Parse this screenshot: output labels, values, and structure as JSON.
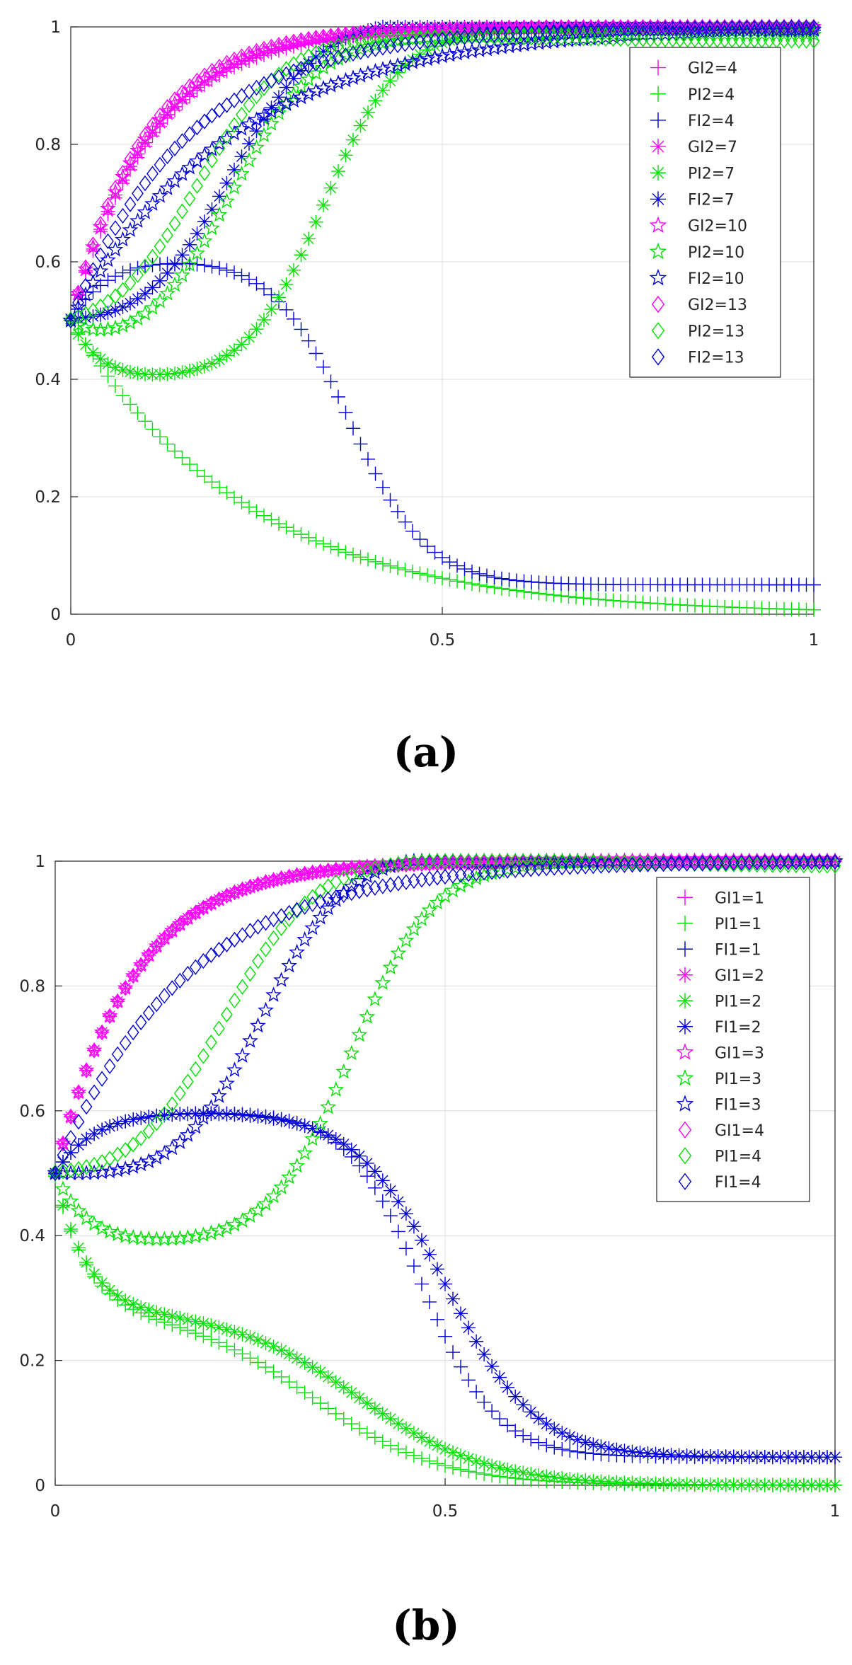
{
  "figure": {
    "caption_a": "(a)",
    "caption_b": "(b)"
  },
  "colors": {
    "G": "#ff00ff",
    "P": "#00e000",
    "F": "#0000d4"
  },
  "chart_data": [
    {
      "type": "scatter",
      "panel": "a",
      "title": "",
      "xlabel": "",
      "ylabel": "",
      "xlim": [
        0,
        1
      ],
      "ylim": [
        0,
        1
      ],
      "xticks": [
        "0",
        "0.5",
        "1"
      ],
      "yticks": [
        "0",
        "0.2",
        "0.4",
        "0.6",
        "0.8",
        "1"
      ],
      "grid": true,
      "legend_position": "top-right",
      "series": [
        {
          "name": "GI2=4",
          "group": "G",
          "marker": "plus",
          "model": "rise",
          "params": {
            "k": 9.0
          }
        },
        {
          "name": "PI2=4",
          "group": "P",
          "marker": "plus",
          "model": "fall",
          "params": {
            "k": 4.2
          }
        },
        {
          "name": "FI2=4",
          "group": "F",
          "marker": "plus",
          "model": "bump",
          "params": {
            "p": 0.11,
            "q": 0.06,
            "c": 0.375,
            "s": 0.052
          }
        },
        {
          "name": "GI2=7",
          "group": "G",
          "marker": "asterisk",
          "model": "rise",
          "params": {
            "k": 9.3
          }
        },
        {
          "name": "PI2=7",
          "group": "P",
          "marker": "asterisk",
          "model": "dip",
          "params": {
            "d": 0.105,
            "w": 0.09,
            "c": 0.34,
            "s": 0.052
          }
        },
        {
          "name": "FI2=7",
          "group": "F",
          "marker": "asterisk",
          "model": "rise",
          "params": {
            "k": 2.3,
            "b": 0.095,
            "c": 0.215,
            "s": 0.062
          }
        },
        {
          "name": "GI2=10",
          "group": "G",
          "marker": "star",
          "model": "rise",
          "params": {
            "k": 9.6
          }
        },
        {
          "name": "PI2=10",
          "group": "P",
          "marker": "star",
          "model": "dip",
          "params": {
            "d": 0.045,
            "w": 0.06,
            "c": 0.215,
            "s": 0.058
          }
        },
        {
          "name": "FI2=10",
          "group": "F",
          "marker": "star",
          "model": "rise",
          "params": {
            "k": 4.6
          }
        },
        {
          "name": "GI2=13",
          "group": "G",
          "marker": "diamond",
          "model": "rise",
          "params": {
            "k": 10.0
          }
        },
        {
          "name": "PI2=13",
          "group": "P",
          "marker": "diamond",
          "model": "rise",
          "params": {
            "k": 2.3,
            "b": 0.04,
            "c": 0.17,
            "s": 0.06
          }
        },
        {
          "name": "FI2=13",
          "group": "F",
          "marker": "diamond",
          "model": "rise",
          "params": {
            "k": 6.3
          }
        }
      ]
    },
    {
      "type": "scatter",
      "panel": "b",
      "title": "",
      "xlabel": "",
      "ylabel": "",
      "xlim": [
        0,
        1
      ],
      "ylim": [
        0,
        1
      ],
      "xticks": [
        "0",
        "0.5",
        "1"
      ],
      "yticks": [
        "0",
        "0.2",
        "0.4",
        "0.6",
        "0.8",
        "1"
      ],
      "grid": true,
      "legend_position": "top-right",
      "series": [
        {
          "name": "GI1=1",
          "group": "G",
          "marker": "plus",
          "model": "rise",
          "params": {
            "k": 10.0
          }
        },
        {
          "name": "PI1=1",
          "group": "P",
          "marker": "plus",
          "model": "fall2",
          "params": {
            "a1": 0.22,
            "r1": 25,
            "a2": 0.28,
            "c": 0.33,
            "s": 0.082
          }
        },
        {
          "name": "FI1=1",
          "group": "F",
          "marker": "plus",
          "model": "bump",
          "params": {
            "p": 0.1,
            "q": 0.055,
            "c": 0.47,
            "s": 0.048
          }
        },
        {
          "name": "GI1=2",
          "group": "G",
          "marker": "asterisk",
          "model": "rise",
          "params": {
            "k": 10.0
          }
        },
        {
          "name": "PI1=2",
          "group": "P",
          "marker": "asterisk",
          "model": "fall2",
          "params": {
            "a1": 0.22,
            "r1": 25,
            "a2": 0.28,
            "c": 0.39,
            "s": 0.082
          }
        },
        {
          "name": "FI1=2",
          "group": "F",
          "marker": "asterisk",
          "model": "bump",
          "params": {
            "p": 0.1,
            "q": 0.055,
            "c": 0.5,
            "s": 0.058
          }
        },
        {
          "name": "GI1=3",
          "group": "G",
          "marker": "star",
          "model": "rise",
          "params": {
            "k": 10.0
          }
        },
        {
          "name": "PI1=3",
          "group": "P",
          "marker": "star",
          "model": "dip",
          "params": {
            "d": 0.115,
            "w": 0.075,
            "c": 0.38,
            "s": 0.052
          }
        },
        {
          "name": "FI1=3",
          "group": "F",
          "marker": "star",
          "model": "rise",
          "params": {
            "k": 2.3,
            "b": 0.06,
            "c": 0.265,
            "s": 0.055
          }
        },
        {
          "name": "GI1=4",
          "group": "G",
          "marker": "diamond",
          "model": "rise",
          "params": {
            "k": 10.0
          }
        },
        {
          "name": "PI1=4",
          "group": "P",
          "marker": "diamond",
          "model": "rise",
          "params": {
            "k": 2.3,
            "b": 0.06,
            "c": 0.215,
            "s": 0.06
          }
        },
        {
          "name": "FI1=4",
          "group": "F",
          "marker": "diamond",
          "model": "rise",
          "params": {
            "k": 6.0
          }
        }
      ]
    }
  ]
}
